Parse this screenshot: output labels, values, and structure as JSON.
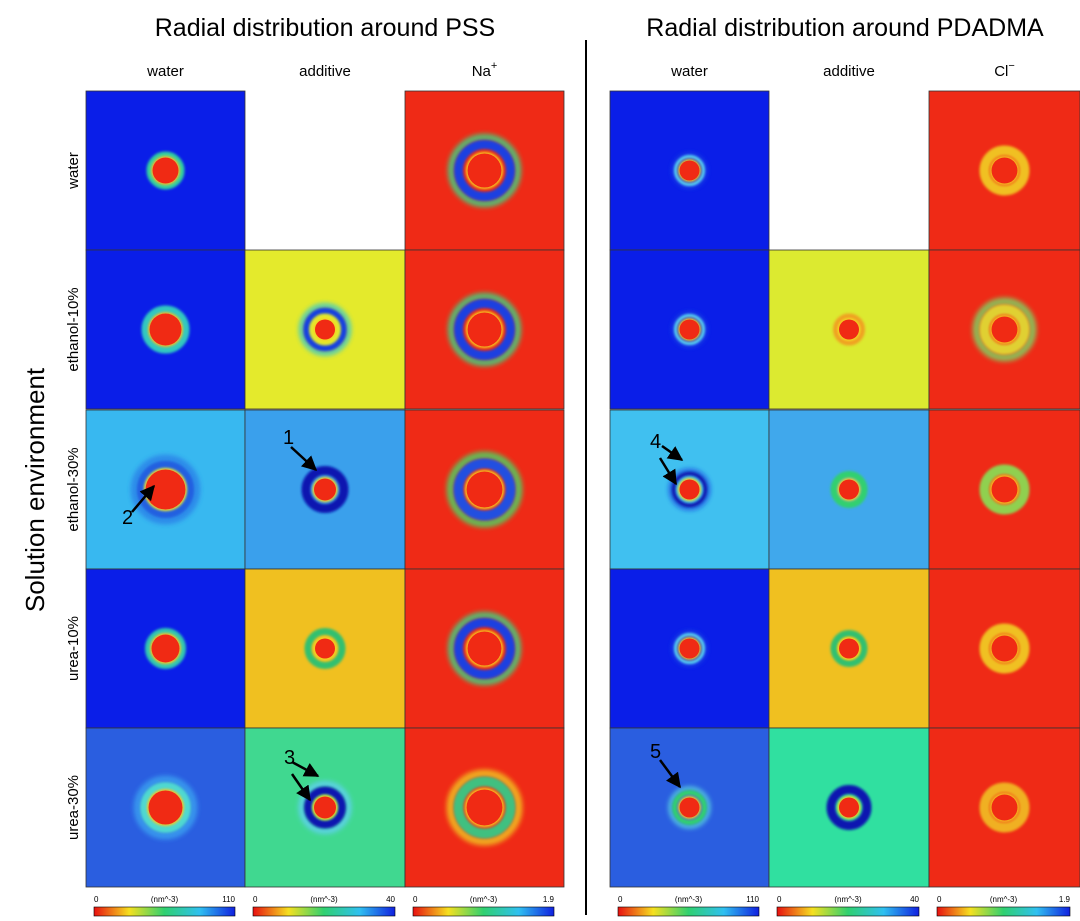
{
  "panels": [
    {
      "title": "Radial distribution around PSS",
      "columns": [
        {
          "text": "water"
        },
        {
          "text": "additive"
        },
        {
          "text": "Na",
          "sup": "+"
        }
      ],
      "colorbars": [
        {
          "min": "0",
          "unit": "(nm^-3)",
          "max": "110"
        },
        {
          "min": "0",
          "unit": "(nm^-3)",
          "max": "40"
        },
        {
          "min": "0",
          "unit": "(nm^-3)",
          "max": "1.9"
        }
      ]
    },
    {
      "title": "Radial distribution around PDADMA",
      "columns": [
        {
          "text": "water"
        },
        {
          "text": "additive"
        },
        {
          "text": "Cl",
          "sup": "−"
        }
      ],
      "colorbars": [
        {
          "min": "0",
          "unit": "(nm^-3)",
          "max": "110"
        },
        {
          "min": "0",
          "unit": "(nm^-3)",
          "max": "40"
        },
        {
          "min": "0",
          "unit": "(nm^-3)",
          "max": "1.9"
        }
      ]
    }
  ],
  "row_labels": [
    "water",
    "ethanol-10%",
    "ethanol-30%",
    "urea-10%",
    "urea-30%"
  ],
  "y_label": "Solution environment",
  "annotations": [
    "1",
    "2",
    "3",
    "4",
    "5"
  ]
}
